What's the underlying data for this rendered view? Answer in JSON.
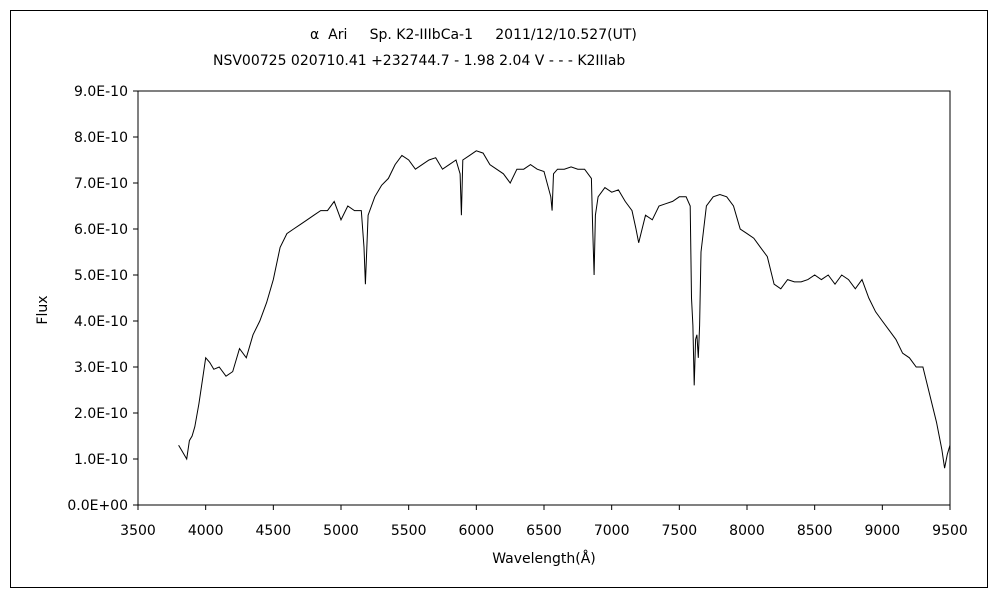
{
  "chart_data": {
    "type": "line",
    "title": "α  Ari     Sp. K2-IIIbCa-1     2011/12/10.527(UT)",
    "subtitle": "NSV00725 020710.41 +232744.7 - 1.98 2.04 V - - - K2IIIab",
    "xlabel": "Wavelength(Å)",
    "ylabel": "Flux",
    "xlim": [
      3500,
      9500
    ],
    "ylim": [
      0,
      9e-10
    ],
    "x_ticks": [
      3500,
      4000,
      4500,
      5000,
      5500,
      6000,
      6500,
      7000,
      7500,
      8000,
      8500,
      9000,
      9500
    ],
    "x_tick_labels": [
      "3500",
      "4000",
      "4500",
      "5000",
      "5500",
      "6000",
      "6500",
      "7000",
      "7500",
      "8000",
      "8500",
      "9000",
      "9500"
    ],
    "y_ticks": [
      0,
      1e-10,
      2e-10,
      3e-10,
      4e-10,
      5e-10,
      6e-10,
      7e-10,
      8e-10,
      9e-10
    ],
    "y_tick_labels": [
      "0.0E+00",
      "1.0E-10",
      "2.0E-10",
      "3.0E-10",
      "4.0E-10",
      "5.0E-10",
      "6.0E-10",
      "7.0E-10",
      "8.0E-10",
      "9.0E-10"
    ],
    "grid": false,
    "legend": "none",
    "series": [
      {
        "x": [
          3800,
          3820,
          3840,
          3860,
          3880,
          3900,
          3920,
          3950,
          3980,
          4000,
          4030,
          4060,
          4100,
          4150,
          4200,
          4250,
          4300,
          4350,
          4400,
          4450,
          4500,
          4550,
          4600,
          4650,
          4700,
          4750,
          4800,
          4850,
          4900,
          4950,
          5000,
          5050,
          5100,
          5150,
          5170,
          5180,
          5200,
          5250,
          5300,
          5350,
          5400,
          5450,
          5500,
          5550,
          5600,
          5650,
          5700,
          5750,
          5800,
          5850,
          5880,
          5890,
          5900,
          5950,
          6000,
          6050,
          6100,
          6150,
          6200,
          6250,
          6300,
          6350,
          6400,
          6450,
          6500,
          6550,
          6560,
          6570,
          6600,
          6650,
          6700,
          6750,
          6800,
          6850,
          6860,
          6870,
          6880,
          6900,
          6950,
          7000,
          7050,
          7100,
          7150,
          7180,
          7200,
          7250,
          7300,
          7350,
          7400,
          7450,
          7500,
          7550,
          7580,
          7590,
          7600,
          7610,
          7620,
          7630,
          7640,
          7650,
          7660,
          7680,
          7700,
          7750,
          7800,
          7850,
          7900,
          7950,
          8000,
          8050,
          8100,
          8150,
          8200,
          8250,
          8300,
          8350,
          8400,
          8450,
          8500,
          8550,
          8600,
          8650,
          8700,
          8750,
          8800,
          8850,
          8900,
          8950,
          9000,
          9050,
          9100,
          9150,
          9200,
          9250,
          9300,
          9350,
          9400,
          9420,
          9440,
          9460,
          9480,
          9500
        ],
        "y": [
          1.3e-10,
          1.2e-10,
          1.1e-10,
          1e-10,
          1.4e-10,
          1.5e-10,
          1.7e-10,
          2.2e-10,
          2.8e-10,
          3.2e-10,
          3.1e-10,
          2.95e-10,
          3e-10,
          2.8e-10,
          2.9e-10,
          3.4e-10,
          3.2e-10,
          3.7e-10,
          4e-10,
          4.4e-10,
          4.9e-10,
          5.6e-10,
          5.9e-10,
          6e-10,
          6.1e-10,
          6.2e-10,
          6.3e-10,
          6.4e-10,
          6.4e-10,
          6.6e-10,
          6.2e-10,
          6.5e-10,
          6.4e-10,
          6.4e-10,
          5.6e-10,
          4.8e-10,
          6.3e-10,
          6.7e-10,
          6.95e-10,
          7.1e-10,
          7.4e-10,
          7.6e-10,
          7.5e-10,
          7.3e-10,
          7.4e-10,
          7.5e-10,
          7.55e-10,
          7.3e-10,
          7.4e-10,
          7.5e-10,
          7.2e-10,
          6.3e-10,
          7.5e-10,
          7.6e-10,
          7.7e-10,
          7.65e-10,
          7.4e-10,
          7.3e-10,
          7.2e-10,
          7e-10,
          7.3e-10,
          7.3e-10,
          7.4e-10,
          7.3e-10,
          7.25e-10,
          6.7e-10,
          6.4e-10,
          7.2e-10,
          7.3e-10,
          7.3e-10,
          7.35e-10,
          7.3e-10,
          7.3e-10,
          7.1e-10,
          6e-10,
          5e-10,
          6.3e-10,
          6.7e-10,
          6.9e-10,
          6.8e-10,
          6.85e-10,
          6.6e-10,
          6.4e-10,
          6e-10,
          5.7e-10,
          6.3e-10,
          6.2e-10,
          6.5e-10,
          6.55e-10,
          6.6e-10,
          6.7e-10,
          6.7e-10,
          6.5e-10,
          4.5e-10,
          3.9e-10,
          2.6e-10,
          3.6e-10,
          3.7e-10,
          3.2e-10,
          3.9e-10,
          5.5e-10,
          6e-10,
          6.5e-10,
          6.7e-10,
          6.75e-10,
          6.7e-10,
          6.5e-10,
          6e-10,
          5.9e-10,
          5.8e-10,
          5.6e-10,
          5.4e-10,
          4.8e-10,
          4.7e-10,
          4.9e-10,
          4.85e-10,
          4.85e-10,
          4.9e-10,
          5e-10,
          4.9e-10,
          5e-10,
          4.8e-10,
          5e-10,
          4.9e-10,
          4.7e-10,
          4.9e-10,
          4.5e-10,
          4.2e-10,
          4e-10,
          3.8e-10,
          3.6e-10,
          3.3e-10,
          3.2e-10,
          3e-10,
          3e-10,
          2.4e-10,
          1.8e-10,
          1.5e-10,
          1.2e-10,
          8e-11,
          1.1e-10,
          1.3e-10
        ]
      }
    ]
  }
}
